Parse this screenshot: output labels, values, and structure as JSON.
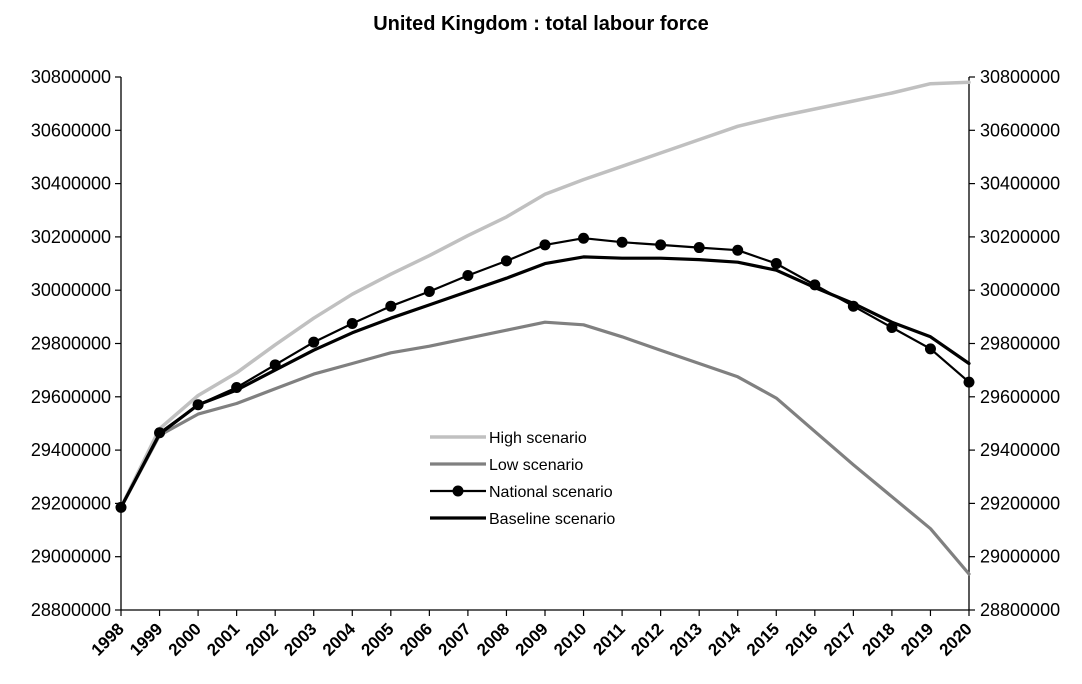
{
  "chart_data": {
    "type": "line",
    "title": "United Kingdom : total labour force",
    "xlabel": "",
    "ylabel": "",
    "x": [
      "1998",
      "1999",
      "2000",
      "2001",
      "2002",
      "2003",
      "2004",
      "2005",
      "2006",
      "2007",
      "2008",
      "2009",
      "2010",
      "2011",
      "2012",
      "2013",
      "2014",
      "2015",
      "2016",
      "2017",
      "2018",
      "2019",
      "2020"
    ],
    "ylim": [
      28800000,
      30800000
    ],
    "yticks": [
      "28800000",
      "29000000",
      "29200000",
      "29400000",
      "29600000",
      "29800000",
      "30000000",
      "30200000",
      "30400000",
      "30600000",
      "30800000"
    ],
    "grid": false,
    "legend_position": "center",
    "series": [
      {
        "name": "High scenario",
        "color": "#c0c0c0",
        "marker": "none",
        "values": [
          29185000,
          29480000,
          29605000,
          29690000,
          29795000,
          29895000,
          29985000,
          30060000,
          30130000,
          30205000,
          30275000,
          30360000,
          30415000,
          30465000,
          30515000,
          30565000,
          30615000,
          30650000,
          30680000,
          30710000,
          30740000,
          30775000,
          30780000
        ]
      },
      {
        "name": "Low scenario",
        "color": "#808080",
        "marker": "none",
        "values": [
          29185000,
          29455000,
          29535000,
          29575000,
          29630000,
          29685000,
          29725000,
          29765000,
          29790000,
          29820000,
          29850000,
          29880000,
          29870000,
          29825000,
          29775000,
          29725000,
          29675000,
          29595000,
          29470000,
          29345000,
          29225000,
          29105000,
          28935000
        ]
      },
      {
        "name": "National scenario",
        "color": "#000000",
        "marker": "circle",
        "values": [
          29185000,
          29465000,
          29570000,
          29635000,
          29720000,
          29805000,
          29875000,
          29940000,
          29995000,
          30055000,
          30110000,
          30170000,
          30195000,
          30180000,
          30170000,
          30160000,
          30150000,
          30100000,
          30020000,
          29940000,
          29860000,
          29780000,
          29655000
        ]
      },
      {
        "name": "Baseline scenario",
        "color": "#000000",
        "marker": "none",
        "values": [
          29185000,
          29460000,
          29570000,
          29625000,
          29700000,
          29775000,
          29840000,
          29895000,
          29945000,
          29995000,
          30045000,
          30100000,
          30125000,
          30120000,
          30120000,
          30115000,
          30105000,
          30075000,
          30010000,
          29950000,
          29880000,
          29825000,
          29725000
        ]
      }
    ]
  }
}
